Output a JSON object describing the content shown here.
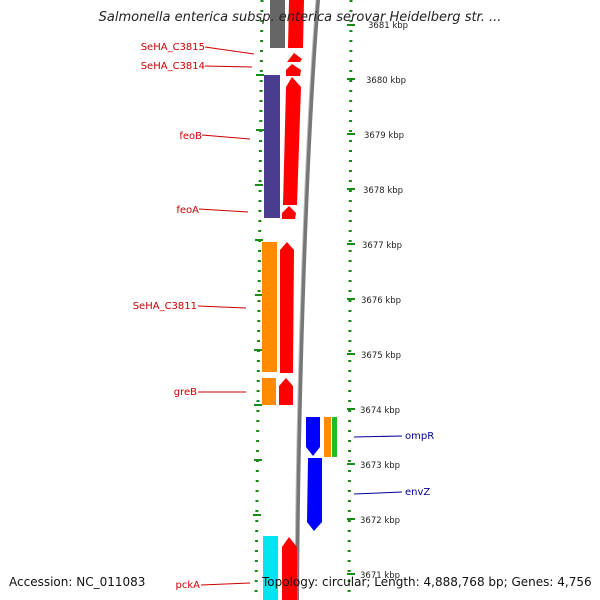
{
  "title": "Salmonella enterica subsp. enterica serovar Heidelberg str. ...",
  "footer": {
    "accession": "Accession: NC_011083",
    "summary": "Topology: circular; Length: 4,888,768 bp; Genes: 4,756"
  },
  "colors": {
    "label_red": "#cc0000",
    "label_blue": "#000099",
    "dotted_ring": "#1a8a1a",
    "backbone": "#888888"
  },
  "tick_labels": [
    "3681 kbp",
    "3680 kbp",
    "3679 kbp",
    "3678 kbp",
    "3677 kbp",
    "3676 kbp",
    "3675 kbp",
    "3674 kbp",
    "3673 kbp",
    "3672 kbp",
    "3671 kbp"
  ],
  "gene_labels_left": [
    "SeHA_C3815",
    "SeHA_C3814",
    "feoB",
    "feoA",
    "SeHA_C3811",
    "greB",
    "pckA"
  ],
  "gene_labels_right": [
    "ompR",
    "envZ"
  ]
}
